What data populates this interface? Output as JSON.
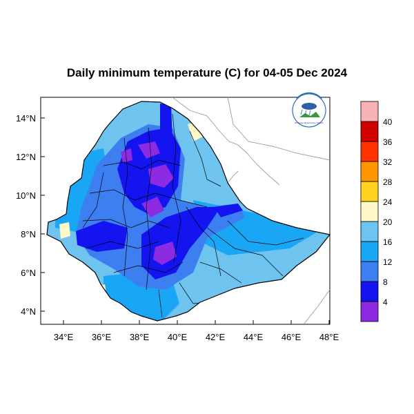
{
  "map": {
    "title": "Daily minimum temperature (C) for 04-05 Dec 2024",
    "lon_ticks": [
      "34°E",
      "36°E",
      "38°E",
      "40°E",
      "42°E",
      "44°E",
      "46°E",
      "48°E"
    ],
    "lat_ticks": [
      "4°N",
      "6°N",
      "8°N",
      "10°N",
      "12°N",
      "14°N"
    ],
    "colorbar": {
      "labels": [
        "4",
        "8",
        "12",
        "16",
        "20",
        "24",
        "28",
        "32",
        "36",
        "40"
      ],
      "colors": [
        "#8c2be2",
        "#1414f0",
        "#3d7ef0",
        "#19a7f5",
        "#6fc3ef",
        "#fff8c8",
        "#ffd21f",
        "#ff9600",
        "#ff3200",
        "#d00000",
        "#f8b4b4"
      ]
    },
    "logo_text": "Ethiopian Meteorology Institute"
  }
}
